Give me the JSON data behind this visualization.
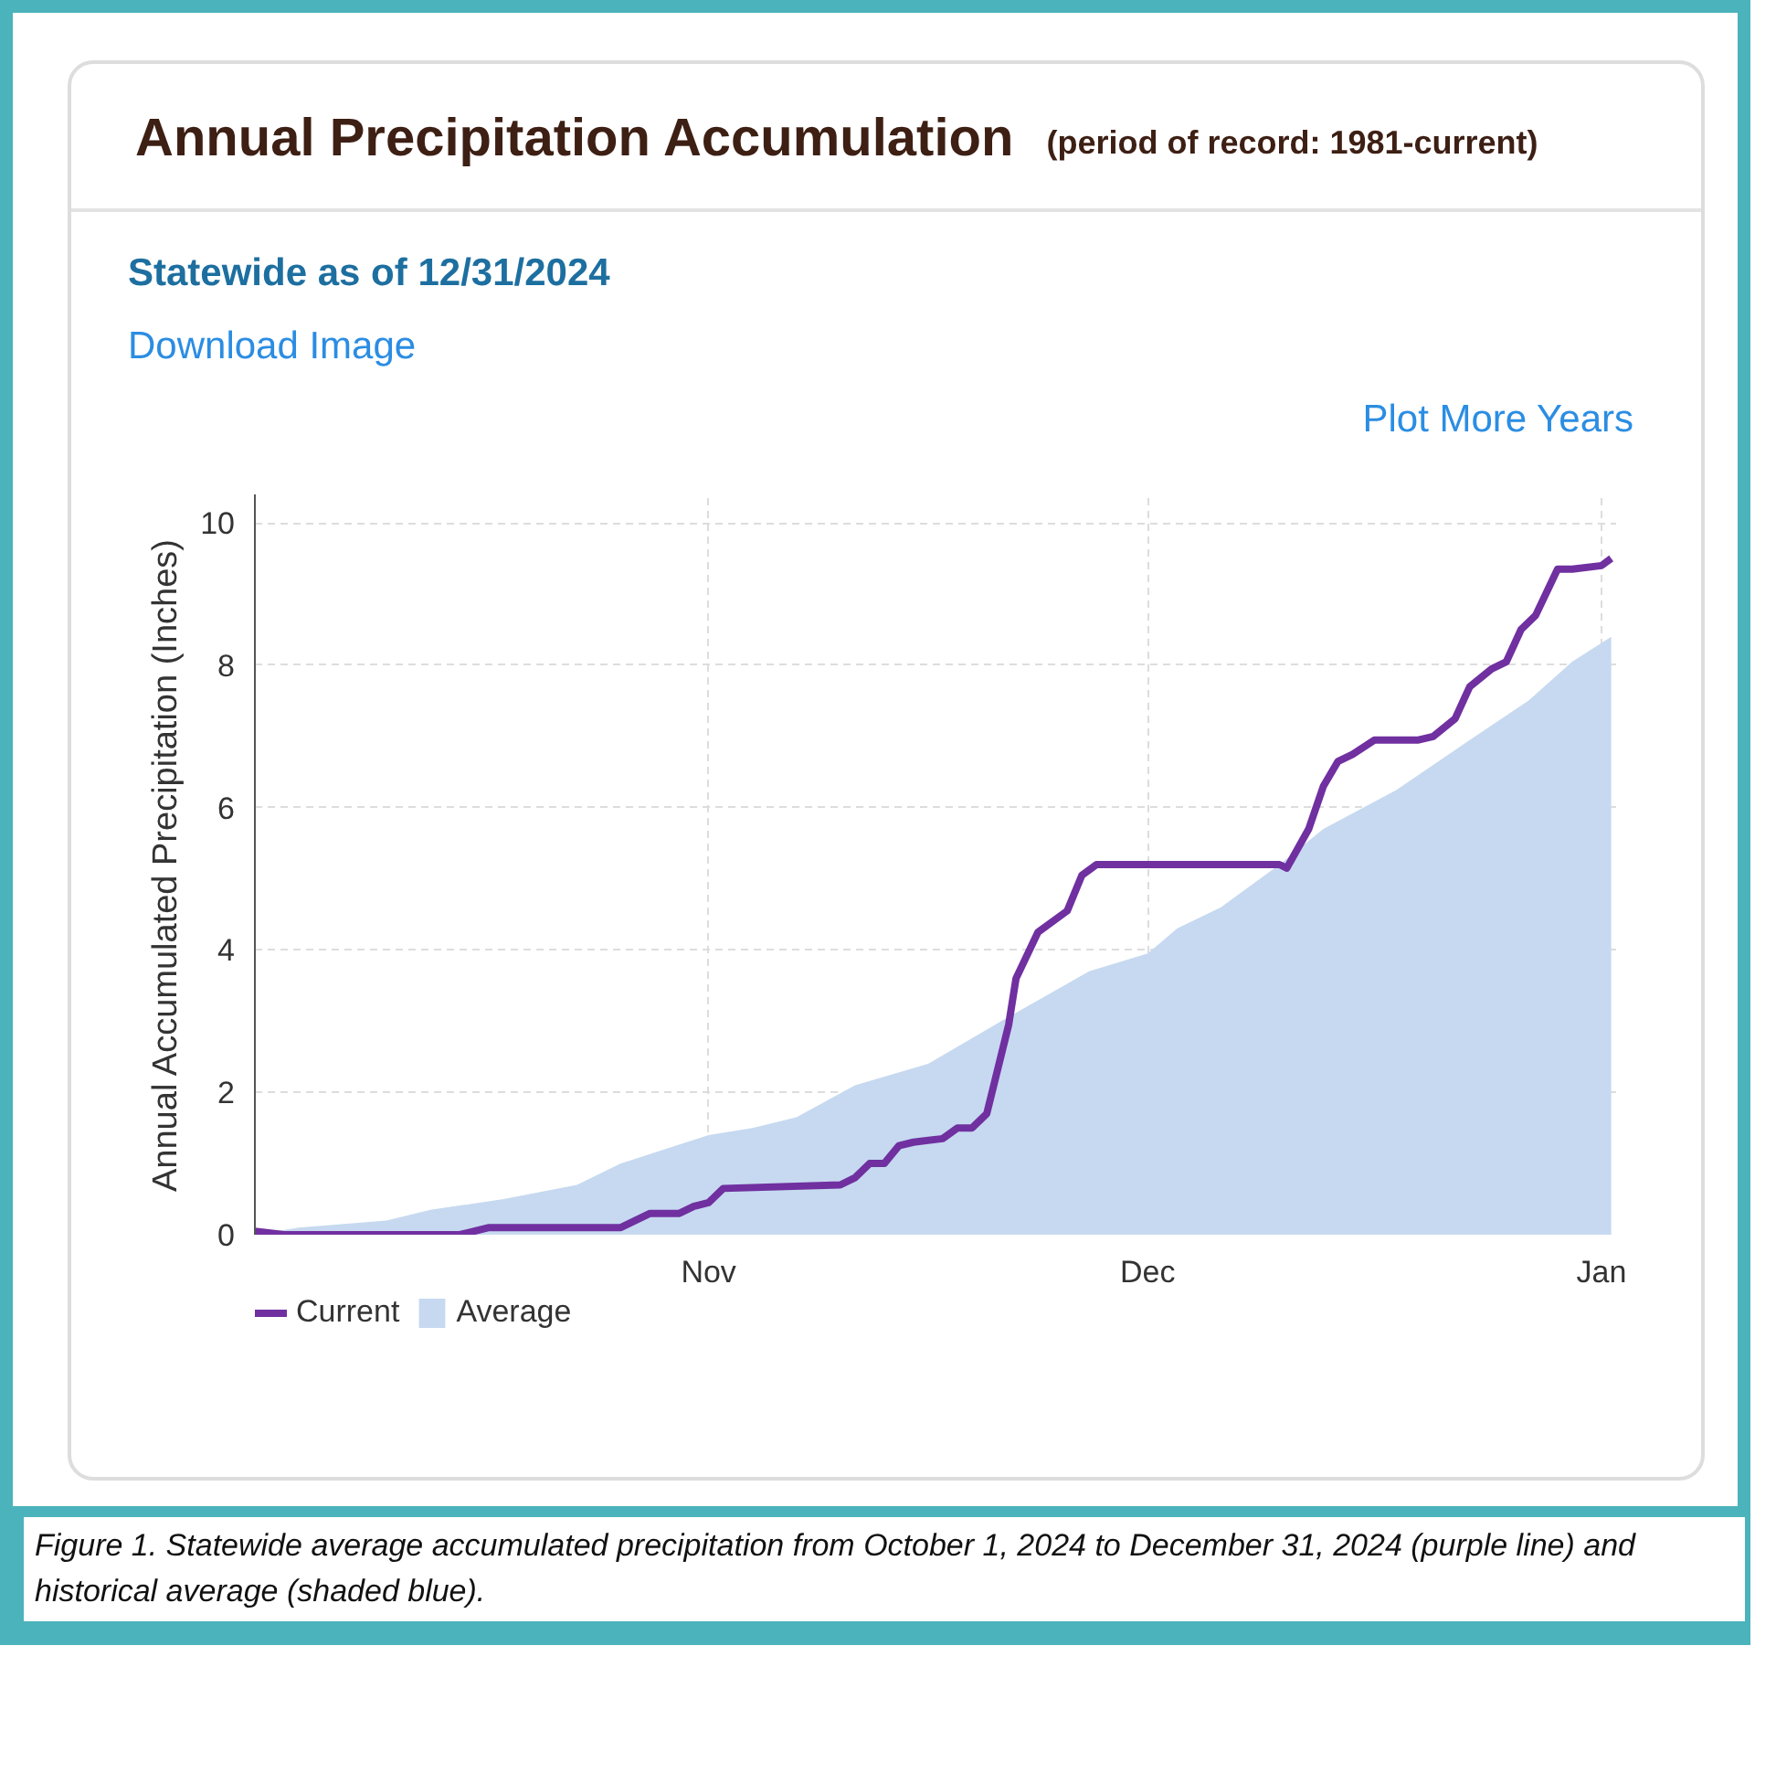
{
  "chart_data": {
    "type": "line",
    "title": "Annual Precipitation Accumulation",
    "subtitle": "(period of record: 1981-current)",
    "annotations": [
      "Statewide as of 12/31/2024",
      "Download Image",
      "Plot More Years",
      "Figure 1. Statewide average accumulated precipitation from October 1, 2024 to December 31, 2024 (purple line) and historical average (shaded blue)."
    ],
    "ylabel": "Annual Accumulated Precipitation (Inches)",
    "xlim": [
      "2024-10-01",
      "2025-01-02"
    ],
    "xticks": [
      {
        "value": "2024-11-01",
        "label": "Nov"
      },
      {
        "value": "2024-12-01",
        "label": "Dec"
      },
      {
        "value": "2025-01-01",
        "label": "Jan"
      }
    ],
    "ylim": [
      0,
      10.4
    ],
    "yticks": [
      0,
      2,
      4,
      6,
      8,
      10
    ],
    "grid": true,
    "legend": "bottom left",
    "line_style": "solid",
    "series": [
      {
        "name": "Average",
        "type": "area",
        "color": "#c6d9f0",
        "x": [
          "2024-10-01",
          "2024-10-04",
          "2024-10-10",
          "2024-10-13",
          "2024-10-18",
          "2024-10-23",
          "2024-10-26",
          "2024-10-29",
          "2024-11-01",
          "2024-11-04",
          "2024-11-07",
          "2024-11-11",
          "2024-11-16",
          "2024-11-21",
          "2024-11-27",
          "2024-12-01",
          "2024-12-03",
          "2024-12-06",
          "2024-12-10",
          "2024-12-13",
          "2024-12-18",
          "2024-12-23",
          "2024-12-27",
          "2024-12-30",
          "2025-01-01T16:00"
        ],
        "values": [
          0,
          0.1,
          0.2,
          0.35,
          0.5,
          0.7,
          1.0,
          1.2,
          1.4,
          1.5,
          1.65,
          2.1,
          2.4,
          3.0,
          3.7,
          3.95,
          4.3,
          4.6,
          5.2,
          5.7,
          6.25,
          6.95,
          7.5,
          8.05,
          8.4
        ]
      },
      {
        "name": "Current",
        "type": "line",
        "color": "#7030a0",
        "x": [
          "2024-10-01",
          "2024-10-03",
          "2024-10-15",
          "2024-10-17",
          "2024-10-26",
          "2024-10-28",
          "2024-10-30",
          "2024-10-31",
          "2024-11-01",
          "2024-11-02",
          "2024-11-10",
          "2024-11-11",
          "2024-11-12",
          "2024-11-13",
          "2024-11-14",
          "2024-11-15",
          "2024-11-17",
          "2024-11-18",
          "2024-11-19",
          "2024-11-20",
          "2024-11-21T12:00",
          "2024-11-22",
          "2024-11-23T12:00",
          "2024-11-25T12:00",
          "2024-11-26T12:00",
          "2024-11-27T12:00",
          "2024-12-10",
          "2024-12-10T12:00",
          "2024-12-12",
          "2024-12-13",
          "2024-12-14",
          "2024-12-15",
          "2024-12-16T12:00",
          "2024-12-19T12:00",
          "2024-12-20T12:00",
          "2024-12-22",
          "2024-12-23",
          "2024-12-24T12:00",
          "2024-12-25T12:00",
          "2024-12-26T12:00",
          "2024-12-27T12:00",
          "2024-12-29",
          "2024-12-30",
          "2025-01-01",
          "2025-01-01T16:00"
        ],
        "values": [
          0.05,
          0,
          0,
          0.1,
          0.1,
          0.3,
          0.3,
          0.4,
          0.45,
          0.65,
          0.7,
          0.8,
          1.0,
          1.0,
          1.25,
          1.3,
          1.35,
          1.5,
          1.5,
          1.7,
          2.95,
          3.6,
          4.25,
          4.55,
          5.05,
          5.2,
          5.2,
          5.15,
          5.7,
          6.3,
          6.65,
          6.75,
          6.95,
          6.95,
          7.0,
          7.25,
          7.7,
          7.95,
          8.05,
          8.5,
          8.7,
          9.35,
          9.35,
          9.4,
          9.5
        ]
      }
    ]
  }
}
